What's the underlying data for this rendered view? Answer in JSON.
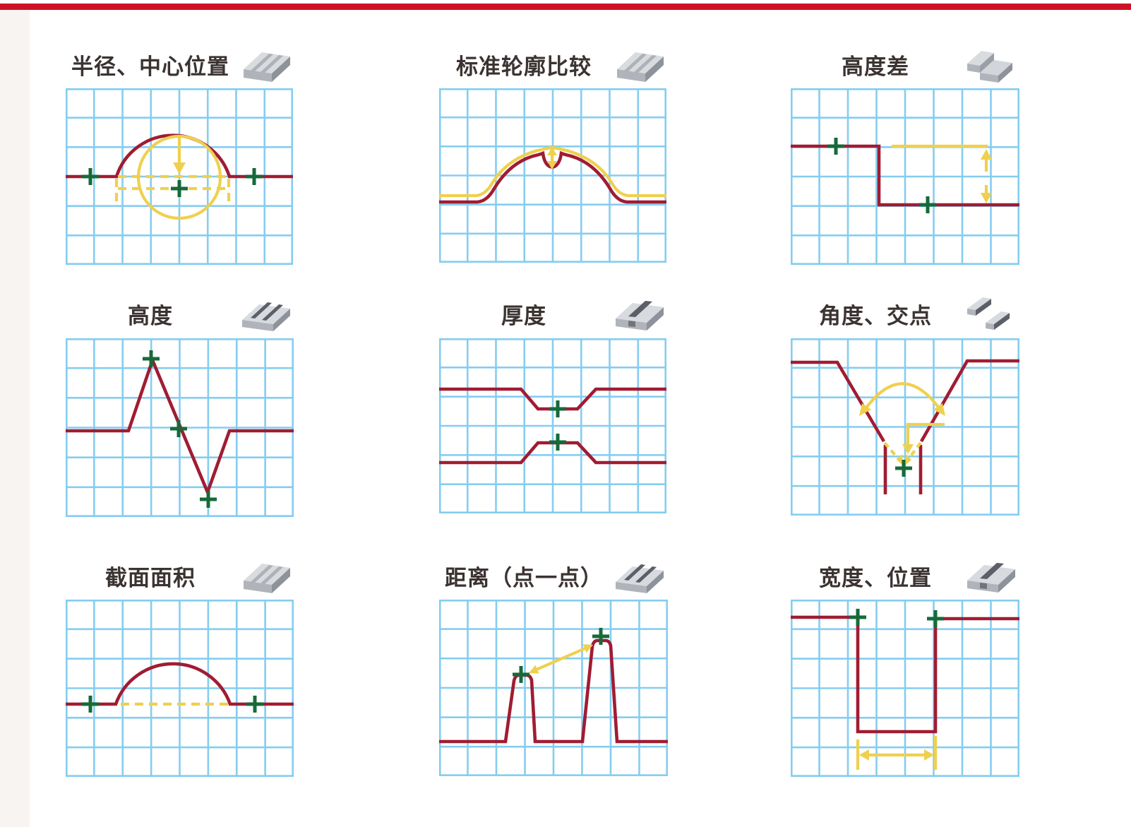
{
  "page": {
    "top_bar_color": "#ce1126",
    "left_strip_color": "#f7f4f2",
    "background": "#ffffff"
  },
  "colors": {
    "grid_blue": "#85cdf0",
    "profile_red": "#a01c32",
    "measure_yellow": "#efd04e",
    "marker_green": "#166a39",
    "title_text": "#3b3331"
  },
  "grid": {
    "columns": 8,
    "rows": 6
  },
  "panels": [
    {
      "id": "radius-center",
      "title": "半径、中心位置",
      "icon": "wavy-surface-block-icon"
    },
    {
      "id": "standard-profile",
      "title": "标准轮廓比较",
      "icon": "wavy-surface-block-icon"
    },
    {
      "id": "height-difference",
      "title": "高度差",
      "icon": "stepped-block-icon"
    },
    {
      "id": "height",
      "title": "高度",
      "icon": "ribbed-block-icon"
    },
    {
      "id": "thickness",
      "title": "厚度",
      "icon": "grooved-block-icon"
    },
    {
      "id": "angle-intersection",
      "title": "角度、交点",
      "icon": "two-bars-icon"
    },
    {
      "id": "cross-section-area",
      "title": "截面面积",
      "icon": "wavy-surface-block-icon"
    },
    {
      "id": "distance-point-point",
      "title": "距离（点一点）",
      "icon": "ribbed-block-icon"
    },
    {
      "id": "width-position",
      "title": "宽度、位置",
      "icon": "grooved-block-icon"
    }
  ]
}
